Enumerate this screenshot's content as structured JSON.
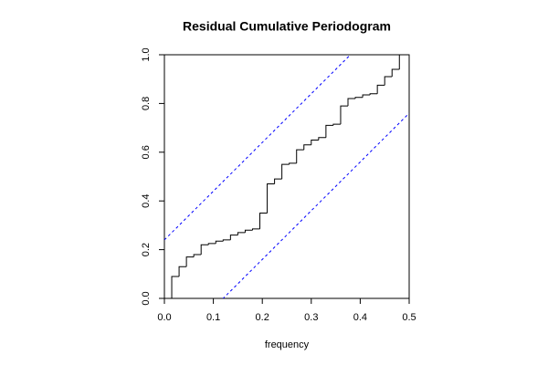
{
  "chart_data": {
    "type": "step",
    "title": "Residual Cumulative Periodogram",
    "x_label": "frequency",
    "x": [
      0.015,
      0.03,
      0.045,
      0.06,
      0.075,
      0.09,
      0.105,
      0.12,
      0.135,
      0.15,
      0.165,
      0.18,
      0.195,
      0.21,
      0.225,
      0.24,
      0.255,
      0.27,
      0.285,
      0.3,
      0.315,
      0.33,
      0.345,
      0.36,
      0.375,
      0.39,
      0.405,
      0.42,
      0.435,
      0.45,
      0.465,
      0.48
    ],
    "values": [
      0.09,
      0.13,
      0.17,
      0.18,
      0.22,
      0.225,
      0.235,
      0.24,
      0.26,
      0.27,
      0.28,
      0.285,
      0.35,
      0.47,
      0.49,
      0.55,
      0.555,
      0.61,
      0.63,
      0.65,
      0.66,
      0.71,
      0.715,
      0.79,
      0.82,
      0.825,
      0.835,
      0.84,
      0.875,
      0.91,
      0.94,
      1.0
    ],
    "color": "#000000",
    "confidence_lines": [
      {
        "intercept": 0.24,
        "slope": 2
      },
      {
        "intercept": -0.24,
        "slope": 2
      }
    ],
    "confidence_color": "#0000ff",
    "xlim": [
      0,
      0.5
    ],
    "ylim": [
      0,
      1
    ],
    "xticks": [
      {
        "value": 0,
        "label": "0.0"
      },
      0.1,
      0.2,
      0.3,
      0.4,
      0.5
    ],
    "yticks": [
      {
        "value": 0,
        "label": "0.0"
      },
      0.2,
      0.4,
      0.6,
      0.8,
      {
        "value": 1,
        "label": "1.0"
      }
    ]
  }
}
